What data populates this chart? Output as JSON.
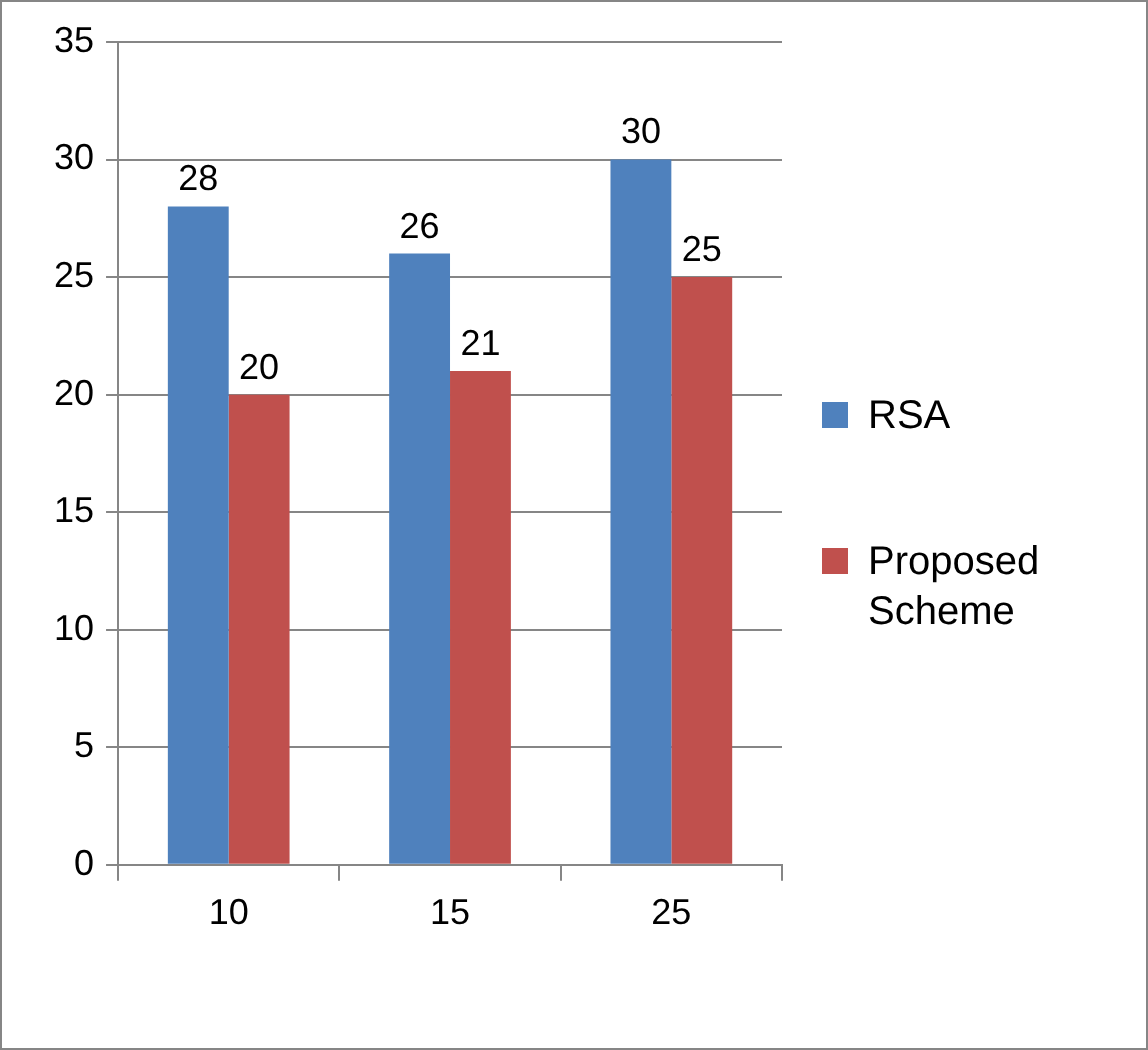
{
  "chart_data": {
    "type": "bar",
    "categories": [
      "10",
      "15",
      "25"
    ],
    "series": [
      {
        "name": "RSA",
        "color": "#4f81bd",
        "values": [
          28,
          26,
          30
        ]
      },
      {
        "name": "Proposed Scheme",
        "color": "#c0504d",
        "values": [
          20,
          21,
          25
        ]
      }
    ],
    "ylim": [
      0,
      35
    ],
    "yticks": [
      0,
      5,
      10,
      15,
      20,
      25,
      30,
      35
    ],
    "grid": "y",
    "legend": "right",
    "data_labels": true
  }
}
